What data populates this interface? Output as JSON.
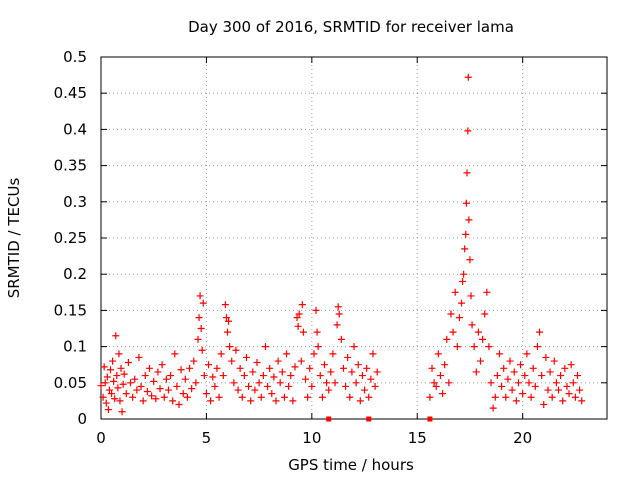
{
  "chart_data": {
    "type": "scatter",
    "title": "Day 300 of 2016, SRMTID for receiver lama",
    "xlabel": "GPS time / hours",
    "ylabel": "SRMTID / TECUs",
    "xlim": [
      0,
      24
    ],
    "ylim": [
      0,
      0.5
    ],
    "grid": true,
    "marker": "+",
    "color": "#ff0000",
    "x_ticks": [
      {
        "value": 0,
        "label": "0"
      },
      {
        "value": 5,
        "label": "5"
      },
      {
        "value": 10,
        "label": "10"
      },
      {
        "value": 15,
        "label": "15"
      },
      {
        "value": 20,
        "label": "20"
      }
    ],
    "y_ticks": [
      {
        "value": 0,
        "label": "0"
      },
      {
        "value": 0.05,
        "label": "0.05"
      },
      {
        "value": 0.1,
        "label": "0.1"
      },
      {
        "value": 0.15,
        "label": "0.15"
      },
      {
        "value": 0.2,
        "label": "0.2"
      },
      {
        "value": 0.25,
        "label": "0.25"
      },
      {
        "value": 0.3,
        "label": "0.3"
      },
      {
        "value": 0.35,
        "label": "0.35"
      },
      {
        "value": 0.4,
        "label": "0.4"
      },
      {
        "value": 0.45,
        "label": "0.45"
      },
      {
        "value": 0.5,
        "label": "0.5"
      }
    ],
    "series": [
      {
        "name": "SRMTID",
        "points": [
          [
            0.0,
            0.046
          ],
          [
            0.1,
            0.03
          ],
          [
            0.15,
            0.072
          ],
          [
            0.2,
            0.05
          ],
          [
            0.25,
            0.022
          ],
          [
            0.3,
            0.058
          ],
          [
            0.35,
            0.013
          ],
          [
            0.4,
            0.04
          ],
          [
            0.45,
            0.068
          ],
          [
            0.5,
            0.035
          ],
          [
            0.55,
            0.08
          ],
          [
            0.6,
            0.052
          ],
          [
            0.65,
            0.028
          ],
          [
            0.7,
            0.115
          ],
          [
            0.75,
            0.06
          ],
          [
            0.8,
            0.043
          ],
          [
            0.85,
            0.09
          ],
          [
            0.9,
            0.025
          ],
          [
            0.95,
            0.07
          ],
          [
            1.0,
            0.01
          ],
          [
            1.05,
            0.048
          ],
          [
            1.1,
            0.062
          ],
          [
            1.2,
            0.035
          ],
          [
            1.3,
            0.078
          ],
          [
            1.4,
            0.05
          ],
          [
            1.5,
            0.03
          ],
          [
            1.6,
            0.055
          ],
          [
            1.7,
            0.04
          ],
          [
            1.8,
            0.085
          ],
          [
            1.9,
            0.045
          ],
          [
            2.0,
            0.025
          ],
          [
            2.1,
            0.06
          ],
          [
            2.2,
            0.038
          ],
          [
            2.3,
            0.07
          ],
          [
            2.4,
            0.032
          ],
          [
            2.5,
            0.052
          ],
          [
            2.6,
            0.028
          ],
          [
            2.7,
            0.065
          ],
          [
            2.8,
            0.042
          ],
          [
            2.9,
            0.075
          ],
          [
            3.0,
            0.03
          ],
          [
            3.1,
            0.055
          ],
          [
            3.2,
            0.04
          ],
          [
            3.3,
            0.06
          ],
          [
            3.4,
            0.025
          ],
          [
            3.5,
            0.09
          ],
          [
            3.6,
            0.045
          ],
          [
            3.7,
            0.02
          ],
          [
            3.8,
            0.068
          ],
          [
            3.9,
            0.035
          ],
          [
            4.0,
            0.055
          ],
          [
            4.1,
            0.03
          ],
          [
            4.2,
            0.07
          ],
          [
            4.3,
            0.042
          ],
          [
            4.4,
            0.08
          ],
          [
            4.5,
            0.05
          ],
          [
            4.6,
            0.11
          ],
          [
            4.65,
            0.14
          ],
          [
            4.7,
            0.17
          ],
          [
            4.75,
            0.125
          ],
          [
            4.8,
            0.095
          ],
          [
            4.85,
            0.16
          ],
          [
            4.9,
            0.06
          ],
          [
            5.0,
            0.035
          ],
          [
            5.1,
            0.075
          ],
          [
            5.2,
            0.025
          ],
          [
            5.3,
            0.058
          ],
          [
            5.4,
            0.045
          ],
          [
            5.5,
            0.07
          ],
          [
            5.6,
            0.03
          ],
          [
            5.7,
            0.09
          ],
          [
            5.8,
            0.06
          ],
          [
            5.9,
            0.158
          ],
          [
            5.95,
            0.14
          ],
          [
            6.0,
            0.12
          ],
          [
            6.05,
            0.135
          ],
          [
            6.1,
            0.1
          ],
          [
            6.2,
            0.08
          ],
          [
            6.3,
            0.05
          ],
          [
            6.4,
            0.095
          ],
          [
            6.5,
            0.04
          ],
          [
            6.6,
            0.07
          ],
          [
            6.7,
            0.03
          ],
          [
            6.8,
            0.06
          ],
          [
            6.9,
            0.085
          ],
          [
            7.0,
            0.045
          ],
          [
            7.1,
            0.025
          ],
          [
            7.2,
            0.065
          ],
          [
            7.3,
            0.04
          ],
          [
            7.4,
            0.078
          ],
          [
            7.5,
            0.05
          ],
          [
            7.6,
            0.03
          ],
          [
            7.7,
            0.06
          ],
          [
            7.8,
            0.1
          ],
          [
            7.9,
            0.045
          ],
          [
            8.0,
            0.07
          ],
          [
            8.1,
            0.035
          ],
          [
            8.2,
            0.058
          ],
          [
            8.3,
            0.025
          ],
          [
            8.4,
            0.08
          ],
          [
            8.5,
            0.05
          ],
          [
            8.6,
            0.065
          ],
          [
            8.7,
            0.03
          ],
          [
            8.8,
            0.09
          ],
          [
            8.9,
            0.045
          ],
          [
            9.0,
            0.06
          ],
          [
            9.1,
            0.025
          ],
          [
            9.2,
            0.072
          ],
          [
            9.3,
            0.14
          ],
          [
            9.35,
            0.128
          ],
          [
            9.4,
            0.145
          ],
          [
            9.5,
            0.08
          ],
          [
            9.55,
            0.158
          ],
          [
            9.6,
            0.12
          ],
          [
            9.7,
            0.055
          ],
          [
            9.8,
            0.03
          ],
          [
            9.9,
            0.07
          ],
          [
            10.0,
            0.045
          ],
          [
            10.1,
            0.09
          ],
          [
            10.2,
            0.15
          ],
          [
            10.25,
            0.12
          ],
          [
            10.3,
            0.1
          ],
          [
            10.4,
            0.06
          ],
          [
            10.5,
            0.03
          ],
          [
            10.6,
            0.075
          ],
          [
            10.7,
            0.05
          ],
          [
            10.8,
            0.04
          ],
          [
            10.9,
            0.065
          ],
          [
            11.0,
            0.09
          ],
          [
            11.1,
            0.05
          ],
          [
            11.2,
            0.13
          ],
          [
            11.25,
            0.155
          ],
          [
            11.3,
            0.145
          ],
          [
            11.4,
            0.11
          ],
          [
            11.5,
            0.07
          ],
          [
            11.6,
            0.045
          ],
          [
            11.7,
            0.085
          ],
          [
            11.8,
            0.03
          ],
          [
            11.9,
            0.065
          ],
          [
            12.0,
            0.1
          ],
          [
            12.1,
            0.05
          ],
          [
            12.2,
            0.075
          ],
          [
            12.3,
            0.025
          ],
          [
            12.4,
            0.06
          ],
          [
            12.5,
            0.04
          ],
          [
            12.6,
            0.07
          ],
          [
            12.7,
            0.03
          ],
          [
            12.8,
            0.055
          ],
          [
            12.9,
            0.09
          ],
          [
            13.0,
            0.045
          ],
          [
            13.1,
            0.065
          ],
          [
            15.6,
            0.03
          ],
          [
            15.7,
            0.07
          ],
          [
            15.8,
            0.05
          ],
          [
            15.9,
            0.045
          ],
          [
            16.0,
            0.09
          ],
          [
            16.1,
            0.06
          ],
          [
            16.2,
            0.035
          ],
          [
            16.3,
            0.075
          ],
          [
            16.4,
            0.11
          ],
          [
            16.5,
            0.05
          ],
          [
            16.6,
            0.145
          ],
          [
            16.7,
            0.12
          ],
          [
            16.8,
            0.175
          ],
          [
            16.9,
            0.1
          ],
          [
            17.0,
            0.14
          ],
          [
            17.1,
            0.16
          ],
          [
            17.15,
            0.19
          ],
          [
            17.2,
            0.2
          ],
          [
            17.25,
            0.235
          ],
          [
            17.3,
            0.255
          ],
          [
            17.33,
            0.298
          ],
          [
            17.36,
            0.34
          ],
          [
            17.4,
            0.398
          ],
          [
            17.42,
            0.472
          ],
          [
            17.45,
            0.275
          ],
          [
            17.5,
            0.22
          ],
          [
            17.55,
            0.17
          ],
          [
            17.6,
            0.13
          ],
          [
            17.7,
            0.1
          ],
          [
            17.8,
            0.065
          ],
          [
            17.9,
            0.12
          ],
          [
            18.0,
            0.08
          ],
          [
            18.1,
            0.11
          ],
          [
            18.2,
            0.145
          ],
          [
            18.3,
            0.175
          ],
          [
            18.4,
            0.1
          ],
          [
            18.5,
            0.05
          ],
          [
            18.6,
            0.015
          ],
          [
            18.7,
            0.03
          ],
          [
            18.8,
            0.06
          ],
          [
            18.9,
            0.09
          ],
          [
            19.0,
            0.045
          ],
          [
            19.1,
            0.07
          ],
          [
            19.2,
            0.03
          ],
          [
            19.3,
            0.055
          ],
          [
            19.4,
            0.08
          ],
          [
            19.5,
            0.04
          ],
          [
            19.6,
            0.065
          ],
          [
            19.7,
            0.025
          ],
          [
            19.8,
            0.05
          ],
          [
            19.9,
            0.075
          ],
          [
            20.0,
            0.035
          ],
          [
            20.1,
            0.06
          ],
          [
            20.2,
            0.09
          ],
          [
            20.3,
            0.05
          ],
          [
            20.4,
            0.03
          ],
          [
            20.5,
            0.07
          ],
          [
            20.6,
            0.045
          ],
          [
            20.7,
            0.1
          ],
          [
            20.8,
            0.12
          ],
          [
            20.9,
            0.06
          ],
          [
            21.0,
            0.02
          ],
          [
            21.1,
            0.085
          ],
          [
            21.2,
            0.04
          ],
          [
            21.3,
            0.065
          ],
          [
            21.4,
            0.03
          ],
          [
            21.5,
            0.08
          ],
          [
            21.6,
            0.05
          ],
          [
            21.7,
            0.04
          ],
          [
            21.8,
            0.06
          ],
          [
            21.9,
            0.025
          ],
          [
            22.0,
            0.07
          ],
          [
            22.1,
            0.045
          ],
          [
            22.2,
            0.035
          ],
          [
            22.3,
            0.075
          ],
          [
            22.4,
            0.05
          ],
          [
            22.5,
            0.03
          ],
          [
            22.6,
            0.06
          ],
          [
            22.7,
            0.04
          ],
          [
            22.8,
            0.025
          ]
        ]
      }
    ],
    "zero_markers_x": [
      10.8,
      12.7,
      15.6
    ]
  }
}
